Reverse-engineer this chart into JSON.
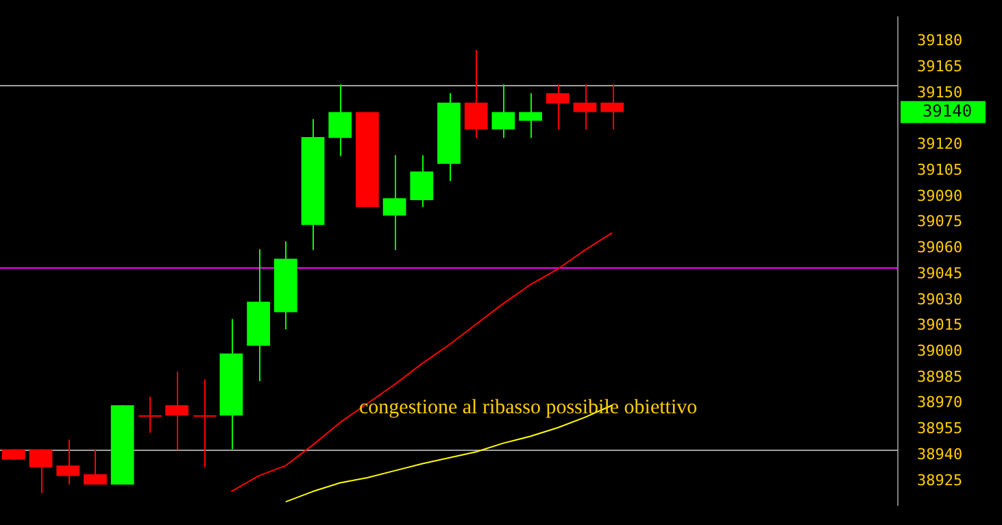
{
  "chart_data": {
    "type": "candlestick",
    "categories": [
      null,
      null,
      null,
      null,
      null,
      null,
      null,
      null,
      null,
      null,
      null,
      null,
      null,
      null,
      null,
      null,
      null,
      null,
      null,
      null,
      null,
      null,
      null,
      null,
      null,
      null,
      null,
      null,
      null,
      null,
      null,
      null,
      null
    ],
    "ohlc": [
      [
        38943.5,
        38943.5,
        38937.5,
        38937.5
      ],
      [
        38943.5,
        38943.5,
        38918,
        38933
      ],
      [
        38934,
        38949,
        38923,
        38928
      ],
      [
        38929,
        38943.5,
        38923,
        38923
      ],
      [
        38923,
        38969,
        38923,
        38969
      ],
      [
        38963.5,
        38974,
        38953,
        38963.5
      ],
      [
        38969,
        38988.5,
        38943,
        38963
      ],
      [
        38963.5,
        38984,
        38933,
        38963.5
      ],
      [
        38963,
        39019,
        38943.5,
        38999
      ],
      [
        39003.5,
        39059.5,
        38983,
        39029
      ],
      [
        39023,
        39064,
        39013,
        39054
      ],
      [
        39073.5,
        39135,
        39059,
        39124.5
      ],
      [
        39124,
        39155,
        39113.5,
        39139
      ],
      [
        39139,
        39139,
        39084,
        39084
      ],
      [
        39079,
        39114,
        39059,
        39089
      ],
      [
        39088,
        39114,
        39084,
        39104.5
      ],
      [
        39109,
        39150,
        39099,
        39144.5
      ],
      [
        39144.5,
        39175,
        39124,
        39129
      ],
      [
        39129,
        39155,
        39124,
        39139
      ],
      [
        39134,
        39150,
        39124,
        39139
      ],
      [
        39150,
        39155,
        39129,
        39144
      ],
      [
        39144.5,
        39155,
        39129,
        39139
      ],
      [
        39144.5,
        39155,
        39129,
        39139
      ],
      null,
      null,
      null,
      null,
      null,
      null,
      null,
      null,
      null,
      null
    ],
    "colors": [
      "#ff0000",
      "#ff0000",
      "#ff0000",
      "#ff0000",
      "#00ff00",
      "#ff0000",
      "#ff0000",
      "#ff0000",
      "#00ff00",
      "#00ff00",
      "#00ff00",
      "#00ff00",
      "#00ff00",
      "#ff0000",
      "#00ff00",
      "#00ff00",
      "#00ff00",
      "#ff0000",
      "#00ff00",
      "#00ff00",
      "#ff0000",
      "#ff0000",
      "#ff0000",
      null,
      null,
      null,
      null,
      null,
      null,
      null,
      null,
      null,
      null
    ],
    "series": [
      {
        "type": "line",
        "color": "#ff0000",
        "values": [
          null,
          null,
          null,
          null,
          null,
          null,
          null,
          null,
          38919,
          38928,
          38934,
          38946,
          38959,
          38970,
          38981,
          38993,
          39004,
          39016,
          39028,
          39039,
          39048,
          39059,
          39069,
          null,
          null,
          null,
          null,
          null,
          null,
          null,
          null,
          null,
          null
        ]
      },
      {
        "type": "line",
        "color": "#ffff00",
        "values": [
          null,
          null,
          null,
          null,
          null,
          null,
          null,
          null,
          null,
          null,
          38913,
          38919,
          38924,
          38927,
          38931,
          38935,
          38938.5,
          38942,
          38947,
          38951,
          38956,
          38962,
          38969,
          null,
          null,
          null,
          null,
          null,
          null,
          null,
          null,
          null,
          null
        ]
      }
    ],
    "ylim": [
      38911,
      39194
    ],
    "yticks": [
      38925,
      38940,
      38955,
      38970,
      38985,
      39000,
      39015,
      39030,
      39045,
      39060,
      39075,
      39090,
      39105,
      39120,
      39135,
      39150,
      39165,
      39180
    ],
    "ref_lines": [
      {
        "axis": "y",
        "value": 39155,
        "color": "#a0a0a0"
      },
      {
        "axis": "y",
        "value": 39049,
        "color": "#ff00ff"
      },
      {
        "axis": "y",
        "value": 38943.5,
        "color": "#a0a0a0"
      }
    ],
    "annotations": [
      "congestione al ribasso possibile obiettivo",
      "39140"
    ],
    "grid": false,
    "legend": false,
    "line_style": "solid",
    "marker": "none"
  }
}
